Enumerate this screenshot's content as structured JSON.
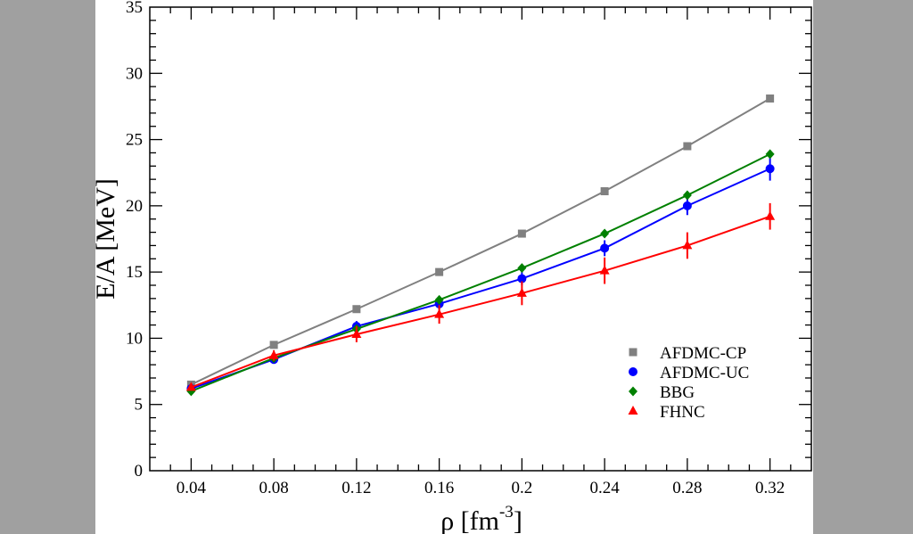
{
  "chart_data": {
    "type": "line",
    "title": "",
    "xlabel": "ρ [fm",
    "xlabel_sup": "-3",
    "xlabel_close": "]",
    "ylabel": "E/A [MeV]",
    "xlim": [
      0.02,
      0.34
    ],
    "ylim": [
      0,
      35
    ],
    "x_ticks": [
      "0.04",
      "0.08",
      "0.12",
      "0.16",
      "0.2",
      "0.24",
      "0.28",
      "0.32"
    ],
    "x_tick_values": [
      0.04,
      0.08,
      0.12,
      0.16,
      0.2,
      0.24,
      0.28,
      0.32
    ],
    "y_ticks": [
      "0",
      "5",
      "10",
      "15",
      "20",
      "25",
      "30",
      "35"
    ],
    "y_tick_values": [
      0,
      5,
      10,
      15,
      20,
      25,
      30,
      35
    ],
    "grid": false,
    "legend_position": "lower-right",
    "x": [
      0.04,
      0.08,
      0.12,
      0.16,
      0.2,
      0.24,
      0.28,
      0.32
    ],
    "series": [
      {
        "name": "AFDMC-CP",
        "color": "#808080",
        "marker": "square",
        "values": [
          6.5,
          9.5,
          12.2,
          15.0,
          17.9,
          21.1,
          24.5,
          28.1
        ],
        "errors": [
          0,
          0,
          0,
          0,
          0,
          0,
          0,
          0
        ]
      },
      {
        "name": "AFDMC-UC",
        "color": "#0000ff",
        "marker": "circle",
        "values": [
          6.2,
          8.4,
          10.9,
          12.6,
          14.5,
          16.8,
          20.0,
          22.8
        ],
        "errors": [
          0.2,
          0.3,
          0.4,
          0.4,
          0.5,
          0.6,
          0.7,
          0.9
        ]
      },
      {
        "name": "BBG",
        "color": "#008000",
        "marker": "diamond",
        "values": [
          6.0,
          8.5,
          10.7,
          12.9,
          15.3,
          17.9,
          20.8,
          23.9
        ],
        "errors": [
          0,
          0,
          0,
          0,
          0,
          0,
          0,
          0
        ]
      },
      {
        "name": "FHNC",
        "color": "#ff0000",
        "marker": "triangle",
        "values": [
          6.3,
          8.7,
          10.3,
          11.8,
          13.4,
          15.1,
          17.0,
          19.2
        ],
        "errors": [
          0.2,
          0.4,
          0.6,
          0.7,
          0.9,
          1.0,
          1.0,
          1.0
        ]
      }
    ]
  }
}
